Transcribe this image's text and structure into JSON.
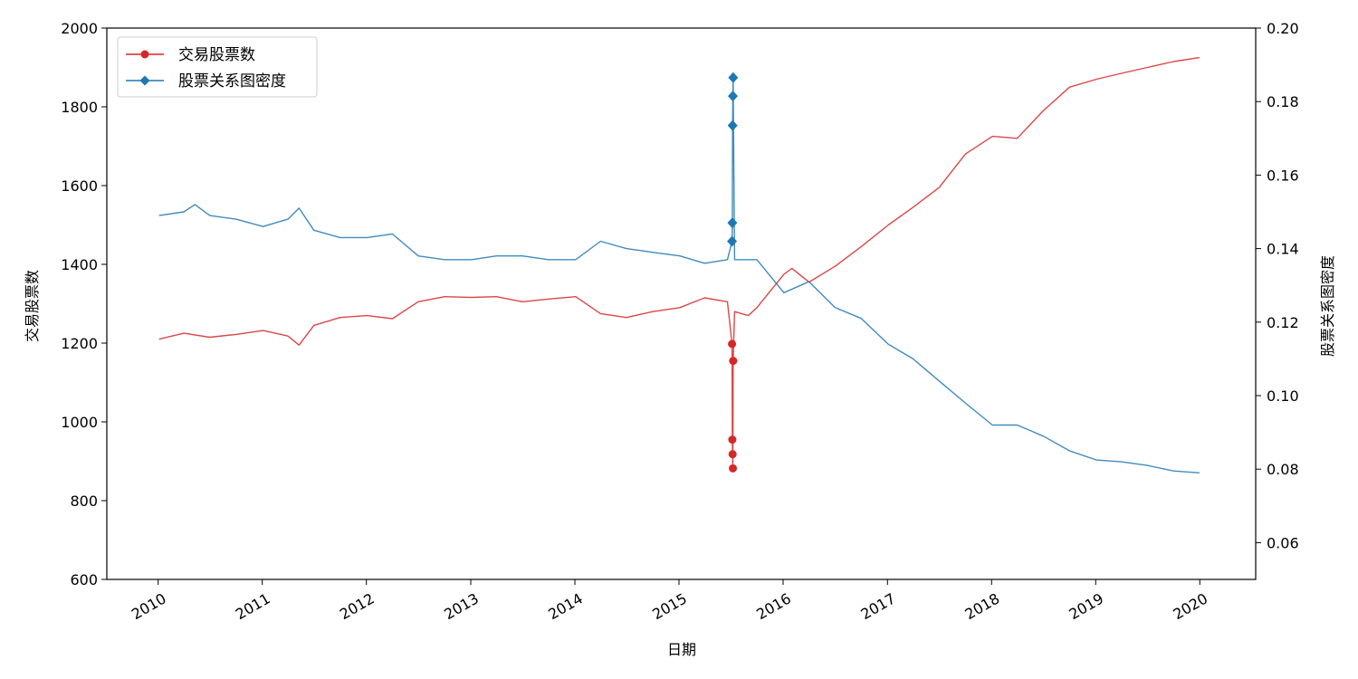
{
  "chart_data": {
    "type": "line",
    "title": "",
    "xlabel": "日期",
    "ylabel_left": "交易股票数",
    "ylabel_right": "股票关系图密度",
    "x_ticks": [
      "2010",
      "2011",
      "2012",
      "2013",
      "2014",
      "2015",
      "2016",
      "2017",
      "2018",
      "2019",
      "2020"
    ],
    "xlim": [
      "2009-07-05",
      "2020-07-15"
    ],
    "ylim_left": [
      600,
      2000
    ],
    "yticks_left": [
      600,
      800,
      1000,
      1200,
      1400,
      1600,
      1800,
      2000
    ],
    "ylim_right": [
      0.05,
      0.2
    ],
    "yticks_right": [
      "0.06",
      "0.08",
      "0.10",
      "0.12",
      "0.14",
      "0.16",
      "0.18",
      "0.20"
    ],
    "legend_position": "top-left",
    "grid": false,
    "series": [
      {
        "name": "交易股票数",
        "axis": "left",
        "color": "#d62728",
        "marker": "circle",
        "points": [
          [
            "2010-01-04",
            1210
          ],
          [
            "2010-04-01",
            1225
          ],
          [
            "2010-07-01",
            1215
          ],
          [
            "2010-10-01",
            1222
          ],
          [
            "2011-01-04",
            1232
          ],
          [
            "2011-04-01",
            1218
          ],
          [
            "2011-05-10",
            1195
          ],
          [
            "2011-07-01",
            1245
          ],
          [
            "2011-10-01",
            1265
          ],
          [
            "2012-01-04",
            1270
          ],
          [
            "2012-04-01",
            1262
          ],
          [
            "2012-07-01",
            1305
          ],
          [
            "2012-10-01",
            1318
          ],
          [
            "2013-01-04",
            1316
          ],
          [
            "2013-04-01",
            1318
          ],
          [
            "2013-07-01",
            1305
          ],
          [
            "2013-10-01",
            1312
          ],
          [
            "2014-01-04",
            1318
          ],
          [
            "2014-04-01",
            1275
          ],
          [
            "2014-07-01",
            1265
          ],
          [
            "2014-10-01",
            1280
          ],
          [
            "2015-01-04",
            1290
          ],
          [
            "2015-04-01",
            1315
          ],
          [
            "2015-06-20",
            1305
          ],
          [
            "2015-07-06",
            1198
          ],
          [
            "2015-07-07",
            955
          ],
          [
            "2015-07-08",
            918
          ],
          [
            "2015-07-09",
            882
          ],
          [
            "2015-07-10",
            1155
          ],
          [
            "2015-07-15",
            1280
          ],
          [
            "2015-09-01",
            1270
          ],
          [
            "2015-10-01",
            1290
          ],
          [
            "2016-01-04",
            1375
          ],
          [
            "2016-02-01",
            1390
          ],
          [
            "2016-04-01",
            1355
          ],
          [
            "2016-07-01",
            1395
          ],
          [
            "2016-10-01",
            1445
          ],
          [
            "2017-01-04",
            1500
          ],
          [
            "2017-04-01",
            1545
          ],
          [
            "2017-07-01",
            1595
          ],
          [
            "2017-10-01",
            1680
          ],
          [
            "2018-01-04",
            1725
          ],
          [
            "2018-04-01",
            1720
          ],
          [
            "2018-07-01",
            1790
          ],
          [
            "2018-10-01",
            1850
          ],
          [
            "2019-01-04",
            1870
          ],
          [
            "2019-04-01",
            1885
          ],
          [
            "2019-07-01",
            1900
          ],
          [
            "2019-10-01",
            1915
          ],
          [
            "2019-12-31",
            1925
          ]
        ],
        "highlighted_points": [
          [
            "2015-07-06",
            1198
          ],
          [
            "2015-07-07",
            955
          ],
          [
            "2015-07-08",
            918
          ],
          [
            "2015-07-09",
            882
          ],
          [
            "2015-07-10",
            1155
          ]
        ]
      },
      {
        "name": "股票关系图密度",
        "axis": "right",
        "color": "#1f77b4",
        "marker": "diamond",
        "points": [
          [
            "2010-01-04",
            0.149
          ],
          [
            "2010-04-01",
            0.15
          ],
          [
            "2010-05-10",
            0.152
          ],
          [
            "2010-07-01",
            0.149
          ],
          [
            "2010-10-01",
            0.148
          ],
          [
            "2011-01-04",
            0.146
          ],
          [
            "2011-04-01",
            0.148
          ],
          [
            "2011-05-10",
            0.151
          ],
          [
            "2011-07-01",
            0.145
          ],
          [
            "2011-10-01",
            0.143
          ],
          [
            "2012-01-04",
            0.143
          ],
          [
            "2012-04-01",
            0.144
          ],
          [
            "2012-07-01",
            0.138
          ],
          [
            "2012-10-01",
            0.137
          ],
          [
            "2013-01-04",
            0.137
          ],
          [
            "2013-04-01",
            0.138
          ],
          [
            "2013-07-01",
            0.138
          ],
          [
            "2013-10-01",
            0.137
          ],
          [
            "2014-01-04",
            0.137
          ],
          [
            "2014-04-01",
            0.142
          ],
          [
            "2014-07-01",
            0.14
          ],
          [
            "2014-10-01",
            0.139
          ],
          [
            "2015-01-04",
            0.138
          ],
          [
            "2015-04-01",
            0.136
          ],
          [
            "2015-06-20",
            0.137
          ],
          [
            "2015-07-06",
            0.142
          ],
          [
            "2015-07-07",
            0.147
          ],
          [
            "2015-07-08",
            0.1735
          ],
          [
            "2015-07-09",
            0.1815
          ],
          [
            "2015-07-10",
            0.1865
          ],
          [
            "2015-07-15",
            0.137
          ],
          [
            "2015-10-01",
            0.137
          ],
          [
            "2016-01-04",
            0.128
          ],
          [
            "2016-04-01",
            0.131
          ],
          [
            "2016-07-01",
            0.124
          ],
          [
            "2016-10-01",
            0.121
          ],
          [
            "2017-01-04",
            0.114
          ],
          [
            "2017-04-01",
            0.11
          ],
          [
            "2017-07-01",
            0.104
          ],
          [
            "2017-10-01",
            0.098
          ],
          [
            "2018-01-04",
            0.092
          ],
          [
            "2018-04-01",
            0.092
          ],
          [
            "2018-07-01",
            0.089
          ],
          [
            "2018-10-01",
            0.085
          ],
          [
            "2019-01-04",
            0.0825
          ],
          [
            "2019-04-01",
            0.082
          ],
          [
            "2019-07-01",
            0.081
          ],
          [
            "2019-10-01",
            0.0795
          ],
          [
            "2019-12-31",
            0.079
          ]
        ],
        "highlighted_points": [
          [
            "2015-07-06",
            0.142
          ],
          [
            "2015-07-07",
            0.147
          ],
          [
            "2015-07-08",
            0.1735
          ],
          [
            "2015-07-09",
            0.1815
          ],
          [
            "2015-07-10",
            0.1865
          ]
        ]
      }
    ]
  }
}
